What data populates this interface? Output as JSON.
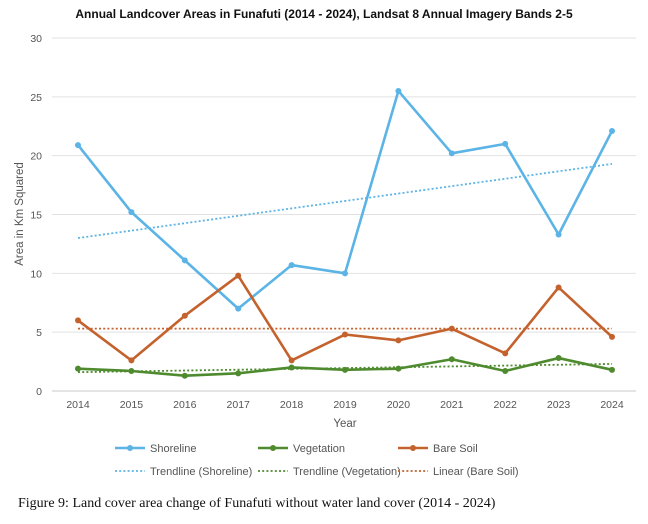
{
  "chart_data": {
    "type": "line",
    "title": "Annual Landcover Areas in Funafuti (2014 - 2024), Landsat 8 Annual Imagery Bands 2-5",
    "xlabel": "Year",
    "ylabel": "Area in Km Squared",
    "categories": [
      "2014",
      "2015",
      "2016",
      "2017",
      "2018",
      "2019",
      "2020",
      "2021",
      "2022",
      "2023",
      "2024"
    ],
    "yticks": [
      "0",
      "5",
      "10",
      "15",
      "20",
      "25",
      "30"
    ],
    "ylim": [
      0,
      30
    ],
    "grid": true,
    "legend_position": "bottom",
    "series": [
      {
        "name": "Shoreline",
        "color": "#5BB4E5",
        "values": [
          20.9,
          15.2,
          11.1,
          7.0,
          10.7,
          10.0,
          25.5,
          20.2,
          21.0,
          13.3,
          22.1
        ]
      },
      {
        "name": "Vegetation",
        "color": "#4E8A2E",
        "values": [
          1.9,
          1.7,
          1.3,
          1.5,
          2.0,
          1.8,
          1.9,
          2.7,
          1.7,
          2.8,
          1.8
        ]
      },
      {
        "name": "Bare Soil",
        "color": "#C4622D",
        "values": [
          6.0,
          2.6,
          6.4,
          9.8,
          2.6,
          4.8,
          4.3,
          5.3,
          3.2,
          8.8,
          4.6
        ]
      }
    ],
    "trendlines": [
      {
        "name": "Trendline (Shoreline)",
        "color": "#5BB4E5",
        "values": [
          13.0,
          19.3
        ]
      },
      {
        "name": "Trendline (Vegetation)",
        "color": "#4E8A2E",
        "values": [
          1.6,
          2.3
        ]
      },
      {
        "name": "Linear (Bare Soil)",
        "color": "#C4622D",
        "values": [
          5.3,
          5.3
        ]
      }
    ]
  },
  "caption": "Figure 9: Land cover area change of Funafuti without water land cover (2014 - 2024)"
}
